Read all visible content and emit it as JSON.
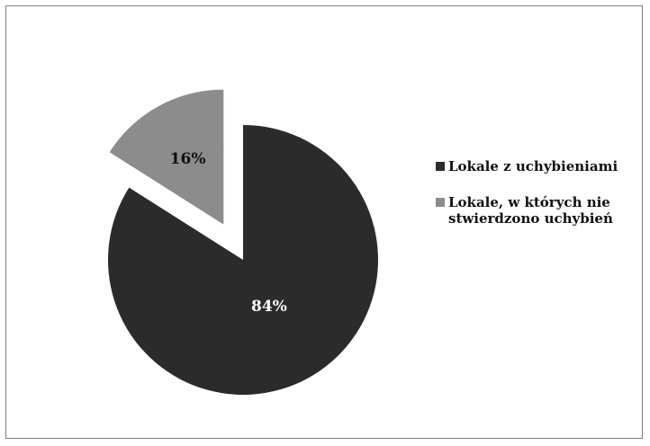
{
  "chart_data": {
    "type": "pie",
    "title": "",
    "slices": [
      {
        "label": "Lokale z uchybieniami",
        "value": 84,
        "display": "84%",
        "color": "#2b2b2b",
        "label_color": "#ffffff",
        "exploded": false
      },
      {
        "label": "Lokale, w których nie stwierdzono uchybień",
        "value": 16,
        "display": "16%",
        "color": "#8c8c8c",
        "label_color": "#111111",
        "exploded": true
      }
    ],
    "legend": {
      "placement": "right",
      "items": [
        {
          "label": "Lokale z uchybieniami",
          "color": "#2b2b2b"
        },
        {
          "label": "Lokale, w których nie stwierdzono uchybień",
          "color": "#8c8c8c"
        }
      ]
    }
  }
}
